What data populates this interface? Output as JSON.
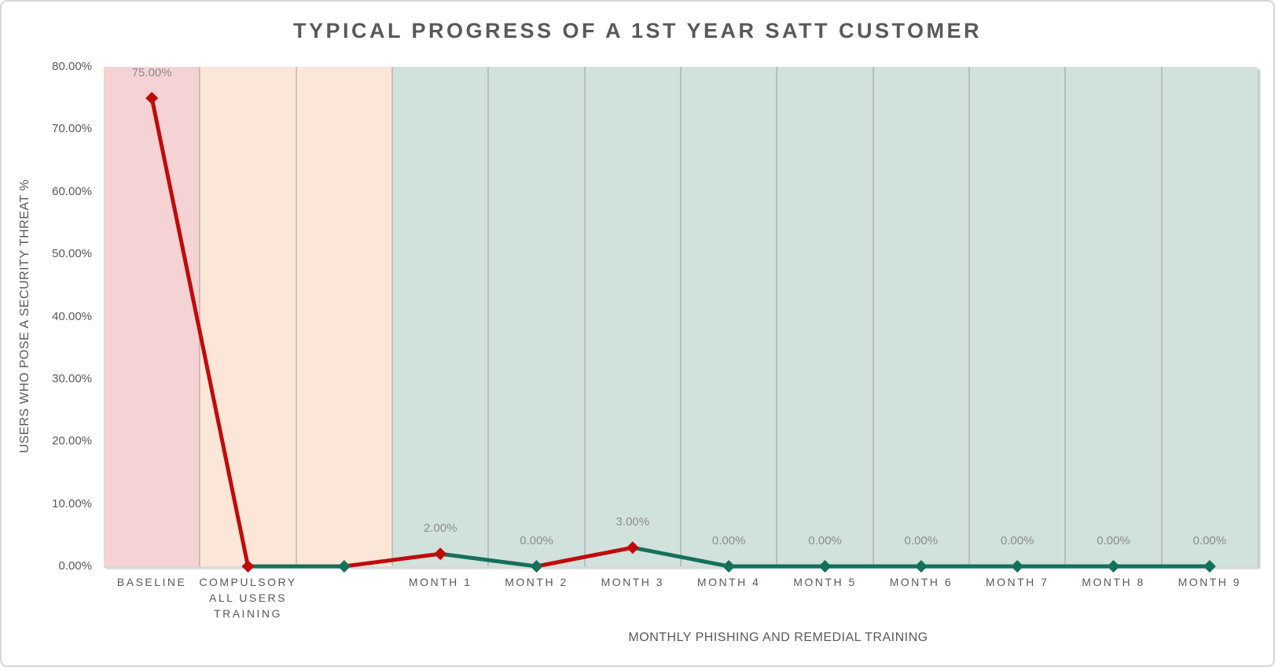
{
  "window": {
    "background": "#ffffff",
    "border_color": "#d6d6d6"
  },
  "chart_data": {
    "type": "line",
    "title": "TYPICAL PROGRESS OF A 1ST YEAR SATT CUSTOMER",
    "xlabel": "MONTHLY PHISHING AND REMEDIAL TRAINING",
    "ylabel": "USERS WHO POSE A SECURITY THREAT %",
    "ylim": [
      0,
      80
    ],
    "ytick_step": 10,
    "yticks": [
      "80.00%",
      "70.00%",
      "60.00%",
      "50.00%",
      "40.00%",
      "30.00%",
      "20.00%",
      "10.00%",
      "0.00%"
    ],
    "categories": [
      "BASELINE",
      "COMPULSORY ALL USERS TRAINING",
      "",
      "MONTH 1",
      "MONTH 2",
      "MONTH 3",
      "MONTH 4",
      "MONTH 5",
      "MONTH 6",
      "MONTH 7",
      "MONTH 8",
      "MONTH 9"
    ],
    "values": [
      75,
      0,
      0,
      2,
      0,
      3,
      0,
      0,
      0,
      0,
      0,
      0
    ],
    "data_labels": [
      "75.00%",
      "",
      "",
      "2.00%",
      "0.00%",
      "3.00%",
      "0.00%",
      "0.00%",
      "0.00%",
      "0.00%",
      "0.00%",
      "0.00%"
    ],
    "point_colors": [
      "red",
      "red",
      "green",
      "red",
      "green",
      "red",
      "green",
      "green",
      "green",
      "green",
      "green",
      "green"
    ],
    "segment_colors": [
      "red",
      "green",
      "red",
      "green",
      "red",
      "green",
      "green",
      "green",
      "green",
      "green",
      "green"
    ],
    "bands": [
      {
        "name": "baseline-band",
        "from": 0,
        "to": 1,
        "color": "#f5d2d3"
      },
      {
        "name": "compulsory-training-band",
        "from": 1,
        "to": 3,
        "color": "#fbe6d7"
      },
      {
        "name": "monthly-training-band",
        "from": 3,
        "to": 12,
        "color": "#d1e1db"
      }
    ],
    "palette": {
      "red": "#c00b0b",
      "green": "#14705a",
      "gridline": "rgba(128,128,128,0.35)",
      "axis_line": "#d9d9d9",
      "tick_text": "#595959",
      "data_label_text": "#8c8c8c",
      "title_text": "#595959",
      "band_shadow": "rgba(106,134,125,0.45)"
    },
    "legend": "none",
    "grid": "vertical-category-lines-only"
  }
}
